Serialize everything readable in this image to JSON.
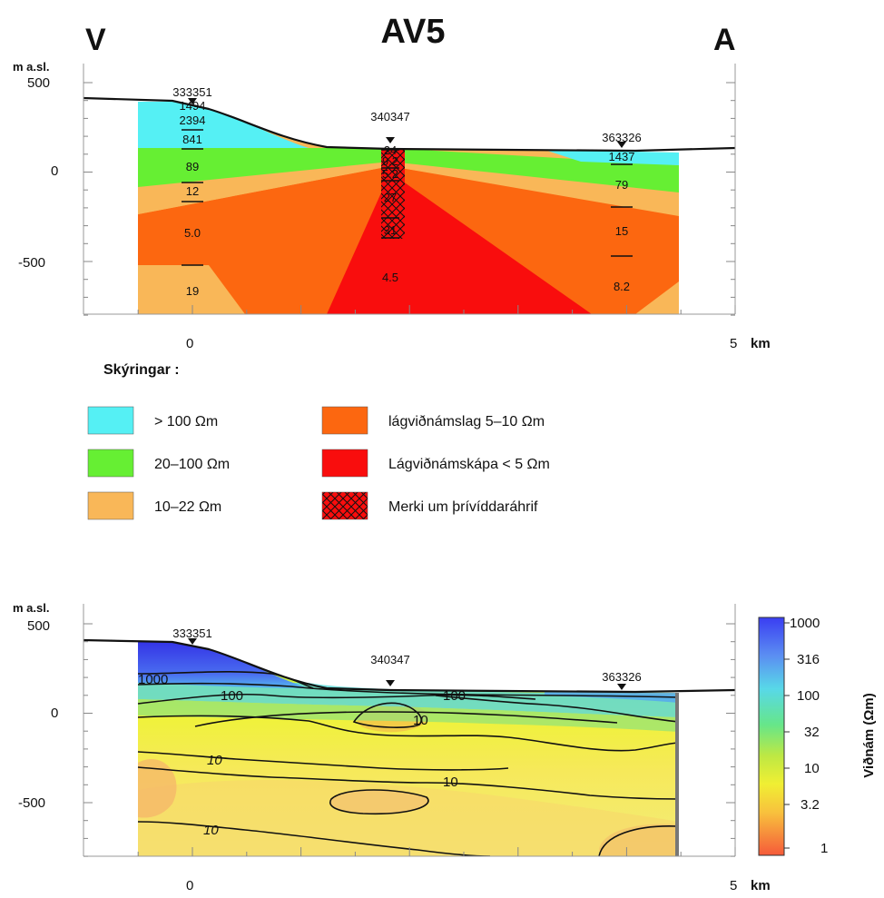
{
  "title": "AV5",
  "dir_left": "V",
  "dir_right": "A",
  "axes": {
    "y_unit": "m a.sl.",
    "x_unit": "km",
    "y_ticks": [
      "500",
      "0",
      "-500"
    ],
    "x_ticks": [
      "0",
      "5"
    ]
  },
  "legend": {
    "title": "Skýringar :",
    "items": [
      {
        "label": "> 100 Ωm",
        "color": "#55f0f4"
      },
      {
        "label": "20–100 Ωm",
        "color": "#66ef33"
      },
      {
        "label": "10–22 Ωm",
        "color": "#f9b758"
      },
      {
        "label": "lágviðnámslag 5–10 Ωm",
        "color": "#fc6710"
      },
      {
        "label": "Lágviðnámskápa < 5 Ωm",
        "color": "#f90d0d"
      },
      {
        "label": "Merki um þrívíddaráhrif",
        "color": "#f90d0d"
      }
    ]
  },
  "stations": [
    "333351",
    "340347",
    "363326"
  ],
  "colorbar": {
    "label": "Viðnám (Ωm)",
    "ticks": [
      "1000",
      "316",
      "100",
      "32",
      "10",
      "3.2",
      "1"
    ]
  },
  "chart_data": [
    {
      "type": "table",
      "x_range_km": [
        -0.5,
        5
      ],
      "ylim": [
        -800,
        500
      ],
      "layered_resistivity_ohm_m": {
        "333351": [
          "1494",
          "2394",
          "841",
          "89",
          "12",
          "5.0",
          "19"
        ],
        "340347": [
          "24",
          "9.2",
          "5.2",
          "27",
          "31",
          "4.5"
        ],
        "363326": [
          "1437",
          "79",
          "15",
          "8.2"
        ]
      }
    },
    {
      "type": "heatmap",
      "x_range_km": [
        -0.5,
        5
      ],
      "ylim": [
        -800,
        500
      ],
      "contour_labels": [
        "1000",
        "100",
        "100",
        "10",
        "10",
        "10",
        "10"
      ],
      "color_range_ohm_m": [
        1,
        1000
      ]
    }
  ]
}
